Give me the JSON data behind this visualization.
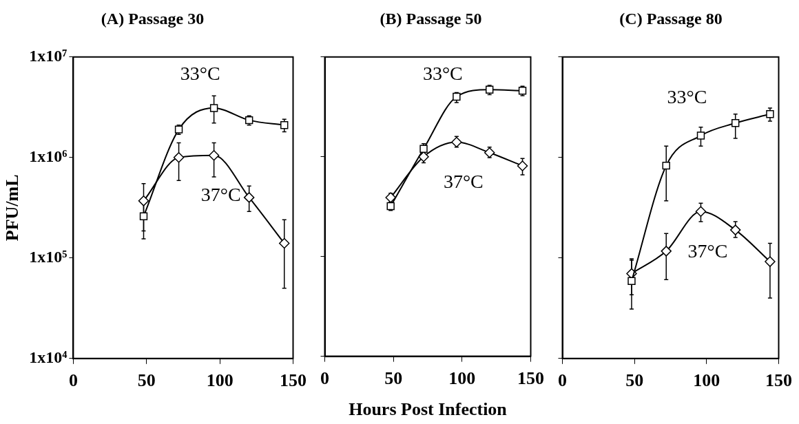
{
  "chart_data": [
    {
      "type": "line",
      "title": "(A) Passage 30",
      "ylabel": "PFU/mL",
      "x": [
        48,
        72,
        96,
        120,
        144
      ],
      "xlim": [
        0,
        150
      ],
      "xticks": [
        0,
        50,
        100,
        150
      ],
      "log": "y",
      "ylim": [
        10000,
        10000000
      ],
      "yticks": [
        {
          "value": 10000,
          "label": "1x10⁴"
        },
        {
          "value": 100000,
          "label": "1x10⁵"
        },
        {
          "value": 1000000,
          "label": "1x10⁶"
        },
        {
          "value": 10000000,
          "label": "1x10⁷"
        }
      ],
      "grid": false,
      "legend": false,
      "line_style": "solid",
      "series": [
        {
          "name": "33°C",
          "color": "#000000",
          "marker": "square",
          "values": [
            260000,
            1900000,
            3100000,
            2350000,
            2100000
          ],
          "errors": [
            [
              155000,
              350000
            ],
            [
              1700000,
              2100000
            ],
            [
              2200000,
              4100000
            ],
            [
              2100000,
              2600000
            ],
            [
              1800000,
              2400000
            ]
          ]
        },
        {
          "name": "37°C",
          "color": "#000000",
          "marker": "diamond",
          "values": [
            370000,
            1000000,
            1050000,
            400000,
            140000
          ],
          "errors": [
            [
              186000,
              550000
            ],
            [
              590000,
              1400000
            ],
            [
              640000,
              1400000
            ],
            [
              290000,
              520000
            ],
            [
              50000,
              240000
            ]
          ]
        }
      ]
    },
    {
      "type": "line",
      "title": "(B) Passage 50",
      "xlabel": "Hours Post Infection",
      "x": [
        48,
        72,
        96,
        120,
        144
      ],
      "xlim": [
        0,
        150
      ],
      "xticks": [
        0,
        50,
        100,
        150
      ],
      "log": "y",
      "ylim": [
        10000,
        10000000
      ],
      "yticks": [
        10000,
        100000,
        1000000,
        10000000
      ],
      "tick_labels": "x",
      "grid": false,
      "legend": false,
      "line_style": "solid",
      "series": [
        {
          "name": "33°C",
          "color": "#000000",
          "marker": "square",
          "values": [
            320000,
            1200000,
            4000000,
            4700000,
            4600000
          ],
          "errors": [
            [
              290000,
              350000
            ],
            [
              1050000,
              1350000
            ],
            [
              3500000,
              4400000
            ],
            [
              4200000,
              5200000
            ],
            [
              4100000,
              5100000
            ]
          ]
        },
        {
          "name": "37°C",
          "color": "#000000",
          "marker": "diamond",
          "values": [
            390000,
            1000000,
            1400000,
            1100000,
            810000
          ],
          "errors": [
            [
              350000,
              430000
            ],
            [
              870000,
              1150000
            ],
            [
              1250000,
              1600000
            ],
            [
              980000,
              1250000
            ],
            [
              660000,
              960000
            ]
          ]
        }
      ]
    },
    {
      "type": "line",
      "title": "(C) Passage 80",
      "x": [
        48,
        72,
        96,
        120,
        144
      ],
      "xlim": [
        0,
        150
      ],
      "xticks": [
        0,
        50,
        100,
        150
      ],
      "log": "y",
      "ylim": [
        10000,
        10000000
      ],
      "yticks": [
        10000,
        100000,
        1000000,
        10000000
      ],
      "tick_labels": "x",
      "grid": false,
      "legend": false,
      "line_style": "solid",
      "series": [
        {
          "name": "33°C",
          "color": "#000000",
          "marker": "square",
          "values": [
            59000,
            830000,
            1650000,
            2200000,
            2700000
          ],
          "errors": [
            [
              31000,
              95000
            ],
            [
              370000,
              1300000
            ],
            [
              1300000,
              2000000
            ],
            [
              1550000,
              2700000
            ],
            [
              2300000,
              3100000
            ]
          ]
        },
        {
          "name": "37°C",
          "color": "#000000",
          "marker": "diamond",
          "values": [
            70000,
            117000,
            290000,
            190000,
            92000
          ],
          "errors": [
            [
              43000,
              98000
            ],
            [
              61000,
              175000
            ],
            [
              230000,
              350000
            ],
            [
              160000,
              230000
            ],
            [
              40000,
              140000
            ]
          ]
        }
      ]
    }
  ]
}
